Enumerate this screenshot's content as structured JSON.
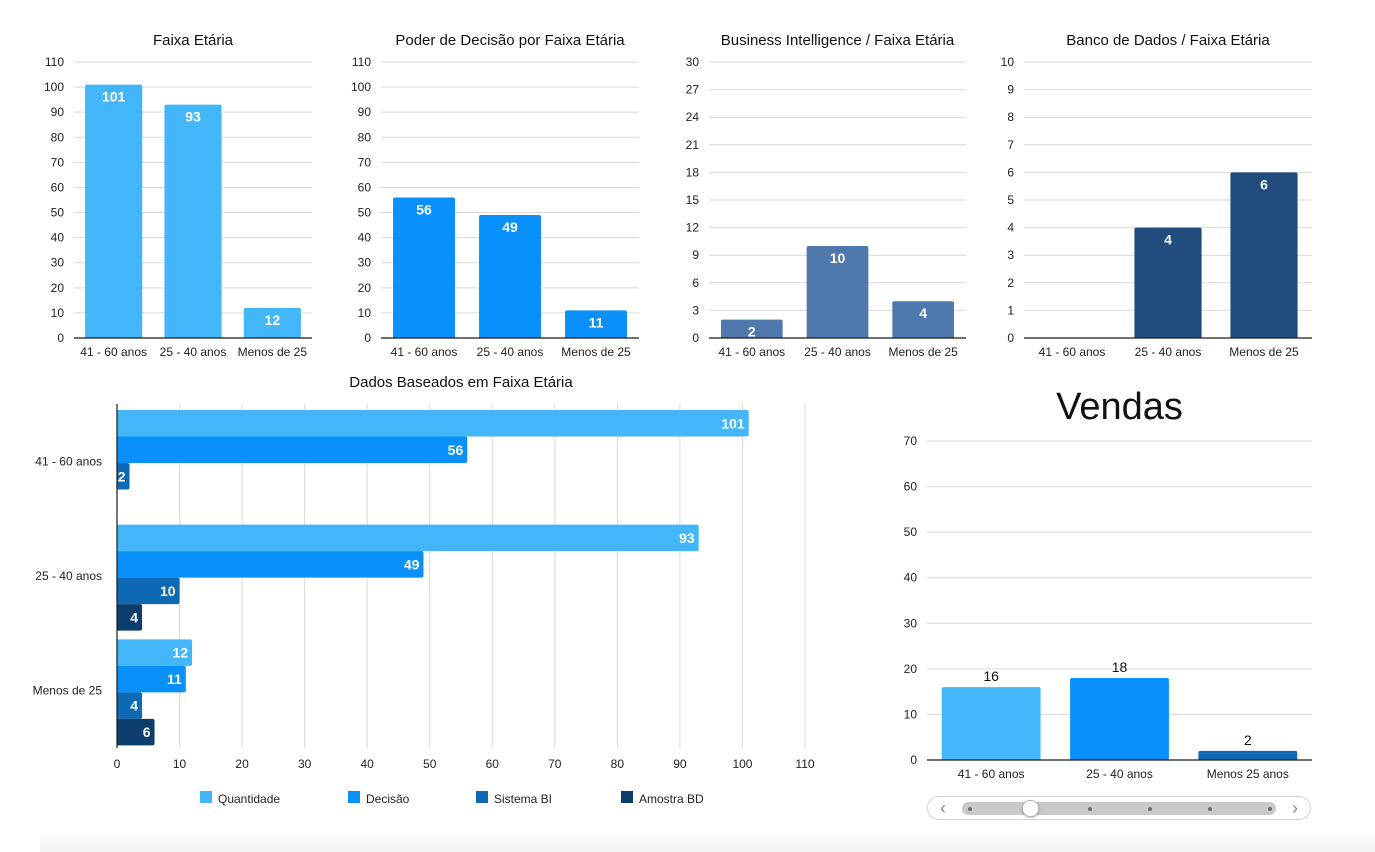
{
  "chart_data": [
    {
      "id": "faixa",
      "type": "bar",
      "title": "Faixa Etária",
      "categories": [
        "41 - 60 anos",
        "25 - 40 anos",
        "Menos de 25"
      ],
      "values": [
        101,
        93,
        12
      ],
      "ylim": [
        0,
        110
      ],
      "yticks": [
        0,
        10,
        20,
        30,
        40,
        50,
        60,
        70,
        80,
        90,
        100,
        110
      ],
      "color": "#43b6fa",
      "grid": true,
      "legend": "none"
    },
    {
      "id": "decisao",
      "type": "bar",
      "title": "Poder de Decisão por Faixa Etária",
      "categories": [
        "41 - 60 anos",
        "25 - 40 anos",
        "Menos de 25"
      ],
      "values": [
        56,
        49,
        11
      ],
      "ylim": [
        0,
        110
      ],
      "yticks": [
        0,
        10,
        20,
        30,
        40,
        50,
        60,
        70,
        80,
        90,
        100,
        110
      ],
      "color": "#0990fb",
      "grid": true,
      "legend": "none"
    },
    {
      "id": "bi",
      "type": "bar",
      "title": "Business Intelligence / Faixa Etária",
      "categories": [
        "41 - 60 anos",
        "25 - 40 anos",
        "Menos de 25"
      ],
      "values": [
        2,
        10,
        4
      ],
      "ylim": [
        0,
        30
      ],
      "yticks": [
        0,
        3,
        6,
        9,
        12,
        15,
        18,
        21,
        24,
        27,
        30
      ],
      "color": "#4f78ad",
      "grid": true,
      "legend": "none"
    },
    {
      "id": "bd",
      "type": "bar",
      "title": "Banco de Dados / Faixa Etária",
      "categories": [
        "41 - 60 anos",
        "25 - 40 anos",
        "Menos de 25"
      ],
      "values": [
        null,
        4,
        6
      ],
      "ylim": [
        0,
        10
      ],
      "yticks": [
        0,
        1,
        2,
        3,
        4,
        5,
        6,
        7,
        8,
        9,
        10
      ],
      "color": "#234c7e",
      "grid": true,
      "legend": "none"
    },
    {
      "id": "combined",
      "type": "bar",
      "orientation": "horizontal",
      "title": "Dados Baseados em Faixa Etária",
      "categories": [
        "41 - 60 anos",
        "25 - 40 anos",
        "Menos de 25"
      ],
      "series": [
        {
          "name": "Quantidade",
          "color": "#43b6fa",
          "values": [
            101,
            93,
            12
          ]
        },
        {
          "name": "Decisão",
          "color": "#0990fb",
          "values": [
            56,
            49,
            11
          ]
        },
        {
          "name": "Sistema BI",
          "color": "#0e69b4",
          "values": [
            2,
            10,
            4
          ]
        },
        {
          "name": "Amostra BD",
          "color": "#0c3d6c",
          "values": [
            null,
            4,
            6
          ]
        }
      ],
      "xlim": [
        0,
        110
      ],
      "xticks": [
        0,
        10,
        20,
        30,
        40,
        50,
        60,
        70,
        80,
        90,
        100,
        110
      ],
      "grid": true,
      "legend": "bottom"
    },
    {
      "id": "vendas",
      "type": "bar",
      "title": "Vendas",
      "categories": [
        "41 - 60 anos",
        "25 - 40 anos",
        "Menos 25 anos"
      ],
      "values": [
        16,
        18,
        2
      ],
      "colors": [
        "#43b6fa",
        "#0990fb",
        "#0e69b4"
      ],
      "ylim": [
        0,
        70
      ],
      "yticks": [
        0,
        10,
        20,
        30,
        40,
        50,
        60,
        70
      ],
      "grid": true,
      "legend": "none"
    }
  ],
  "slider": {
    "prev_icon": "chevron-left-icon",
    "next_icon": "chevron-right-icon",
    "page_count": 6,
    "current_page": 2
  }
}
